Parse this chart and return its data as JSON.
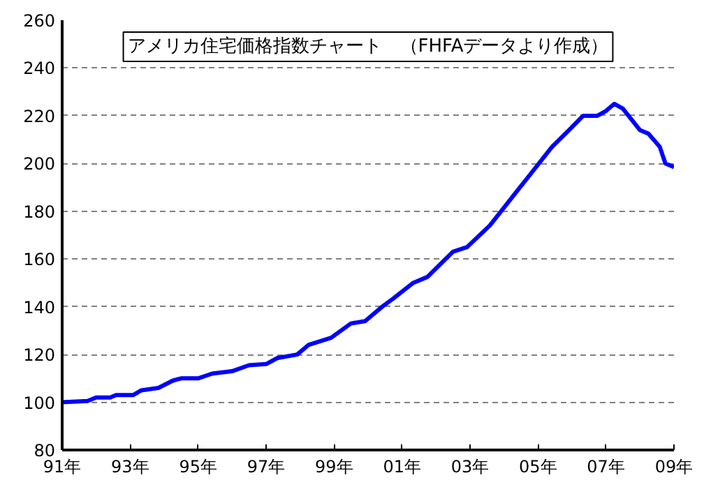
{
  "chart_data": {
    "type": "line",
    "title": "アメリカ住宅価格指数チャート　（FHFAデータより作成）",
    "x": [
      "1991-01",
      "1991-10",
      "1992-01",
      "1992-06",
      "1992-08",
      "1993-02",
      "1993-05",
      "1993-11",
      "1994-04",
      "1994-07",
      "1995-01",
      "1995-06",
      "1996-01",
      "1996-07",
      "1997-01",
      "1997-05",
      "1997-12",
      "1998-04",
      "1998-12",
      "1999-07",
      "1999-12",
      "2000-06",
      "2000-10",
      "2001-05",
      "2001-10",
      "2002-07",
      "2002-12",
      "2003-08",
      "2003-12",
      "2004-06",
      "2004-12",
      "2005-06",
      "2005-12",
      "2006-05",
      "2006-10",
      "2007-01",
      "2007-04",
      "2007-07",
      "2008-01",
      "2008-04",
      "2008-08",
      "2008-10",
      "2009-01"
    ],
    "series": [
      {
        "color": "#0000ff",
        "values": [
          100,
          100.5,
          102,
          102,
          103,
          103,
          105,
          106,
          109,
          110,
          110,
          112,
          113,
          115.5,
          116,
          118.5,
          120,
          124,
          127,
          133,
          134,
          140,
          143.5,
          150,
          152.5,
          163,
          165,
          174,
          180,
          189,
          198,
          207,
          214,
          220,
          220,
          222,
          225,
          223,
          214,
          212.5,
          207,
          200,
          198.5
        ]
      }
    ],
    "xlim": [
      "1991-01",
      "2009-01"
    ],
    "ylim": [
      80,
      260
    ],
    "xticks": [
      {
        "value": "1991",
        "label": "91年"
      },
      {
        "value": "1993",
        "label": "93年"
      },
      {
        "value": "1995",
        "label": "95年"
      },
      {
        "value": "1997",
        "label": "97年"
      },
      {
        "value": "1999",
        "label": "99年"
      },
      {
        "value": "2001",
        "label": "01年"
      },
      {
        "value": "2003",
        "label": "03年"
      },
      {
        "value": "2005",
        "label": "05年"
      },
      {
        "value": "2007",
        "label": "07年"
      },
      {
        "value": "2009",
        "label": "09年"
      }
    ],
    "yticks": [
      80,
      100,
      120,
      140,
      160,
      180,
      200,
      220,
      240,
      260
    ],
    "grid": "y",
    "line_style": "solid"
  }
}
